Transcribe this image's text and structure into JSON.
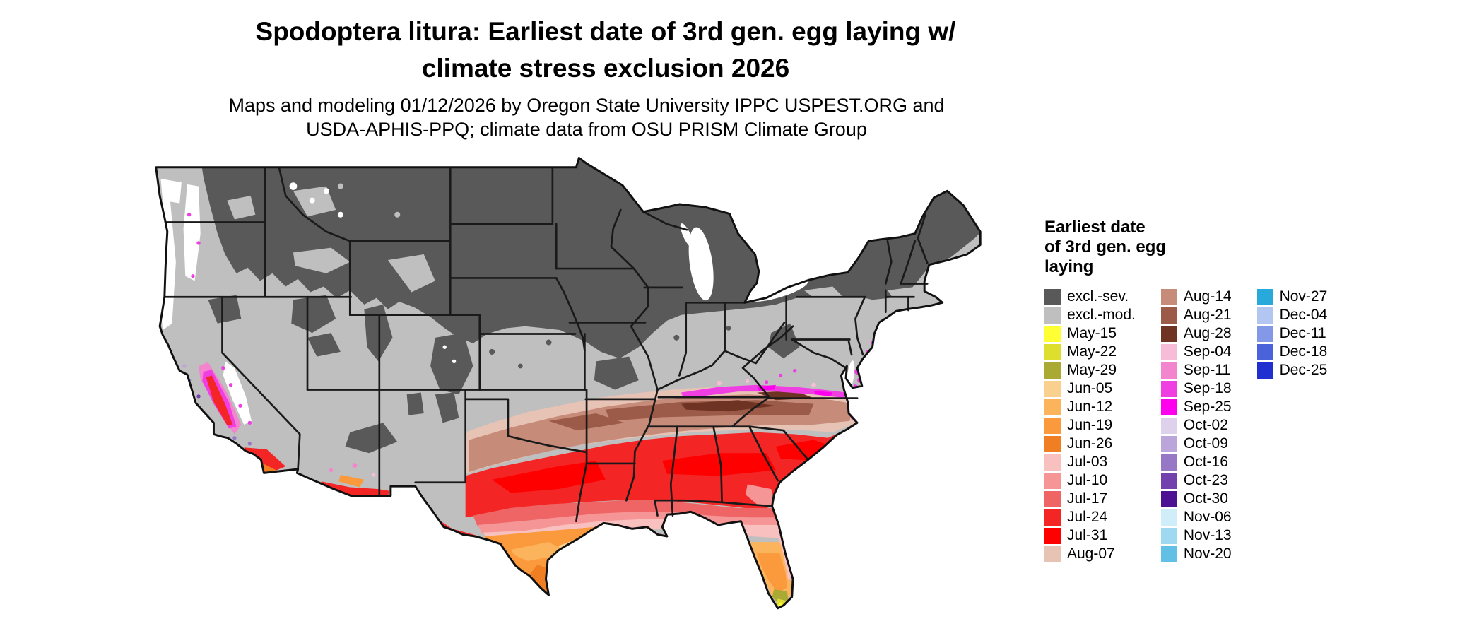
{
  "title": {
    "line1": "Spodoptera litura: Earliest date of 3rd gen. egg laying w/",
    "line2": "climate stress exclusion 2026"
  },
  "subtitle": {
    "line1": "Maps and modeling 01/12/2026 by Oregon State University IPPC USPEST.ORG and",
    "line2": "USDA-APHIS-PPQ; climate data from OSU PRISM Climate Group"
  },
  "legend": {
    "title_lines": [
      "Earliest date",
      "of 3rd gen. egg",
      "laying"
    ],
    "columns": [
      [
        {
          "label": "excl.-sev.",
          "color": "#595959"
        },
        {
          "label": "excl.-mod.",
          "color": "#bfbfbf"
        },
        {
          "label": "May-15",
          "color": "#ffff33"
        },
        {
          "label": "May-22",
          "color": "#dede2e"
        },
        {
          "label": "May-29",
          "color": "#a9a933"
        },
        {
          "label": "Jun-05",
          "color": "#f9d08d"
        },
        {
          "label": "Jun-12",
          "color": "#fbb45c"
        },
        {
          "label": "Jun-19",
          "color": "#fa9a3d"
        },
        {
          "label": "Jun-26",
          "color": "#f07e22"
        },
        {
          "label": "Jul-03",
          "color": "#f9c0c0"
        },
        {
          "label": "Jul-10",
          "color": "#f59595"
        },
        {
          "label": "Jul-17",
          "color": "#ef6464"
        },
        {
          "label": "Jul-24",
          "color": "#f42525"
        },
        {
          "label": "Jul-31",
          "color": "#fe0000"
        },
        {
          "label": "Aug-07",
          "color": "#e7c3b6"
        }
      ],
      [
        {
          "label": "Aug-14",
          "color": "#c68b79"
        },
        {
          "label": "Aug-21",
          "color": "#9c5a48"
        },
        {
          "label": "Aug-28",
          "color": "#6e3322"
        },
        {
          "label": "Sep-04",
          "color": "#f6bcd8"
        },
        {
          "label": "Sep-11",
          "color": "#f285cd"
        },
        {
          "label": "Sep-18",
          "color": "#ef3fe3"
        },
        {
          "label": "Sep-25",
          "color": "#ff00ef"
        },
        {
          "label": "Oct-02",
          "color": "#ddd1ec"
        },
        {
          "label": "Oct-09",
          "color": "#bba6dc"
        },
        {
          "label": "Oct-16",
          "color": "#9678c6"
        },
        {
          "label": "Oct-23",
          "color": "#7341ad"
        },
        {
          "label": "Oct-30",
          "color": "#4d1193"
        },
        {
          "label": "Nov-06",
          "color": "#cfeef9"
        },
        {
          "label": "Nov-13",
          "color": "#9fd9f1"
        },
        {
          "label": "Nov-20",
          "color": "#62bfe5"
        }
      ],
      [
        {
          "label": "Nov-27",
          "color": "#29a8dc"
        },
        {
          "label": "Dec-04",
          "color": "#b3c6f2"
        },
        {
          "label": "Dec-11",
          "color": "#8399e8"
        },
        {
          "label": "Dec-18",
          "color": "#4b63da"
        },
        {
          "label": "Dec-25",
          "color": "#1f2fd0"
        }
      ]
    ]
  }
}
